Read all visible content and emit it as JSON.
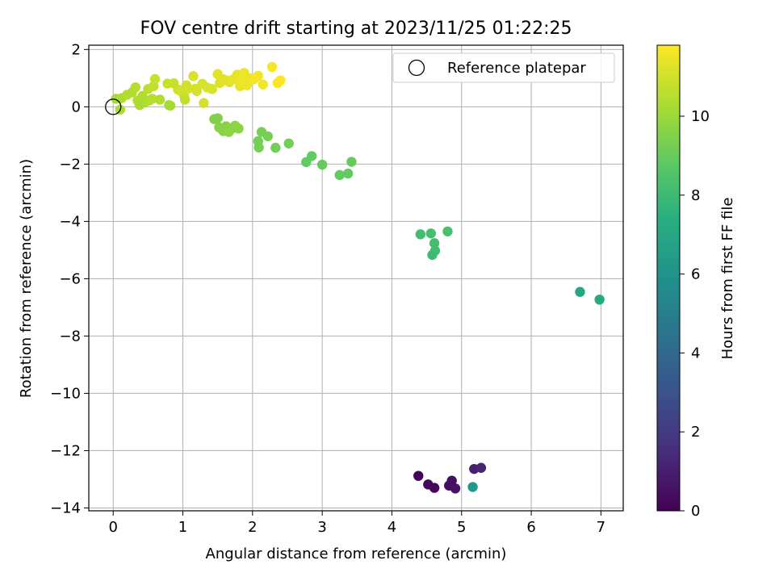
{
  "chart_data": {
    "type": "scatter",
    "title": "FOV centre drift starting at 2023/11/25 01:22:25",
    "xlabel": "Angular distance from reference (arcmin)",
    "ylabel": "Rotation from reference (arcmin)",
    "xlim": [
      -0.35,
      7.32
    ],
    "ylim": [
      -14.1,
      2.15
    ],
    "xticks": [
      0,
      1,
      2,
      3,
      4,
      5,
      6,
      7
    ],
    "yticks": [
      2,
      0,
      -2,
      -4,
      -6,
      -8,
      -10,
      -12,
      -14
    ],
    "grid": true,
    "legend": {
      "label": "Reference platepar",
      "position": "top-right",
      "marker": "open-circle"
    },
    "reference_point": {
      "x": 0,
      "y": 0
    },
    "colorbar": {
      "label": "Hours from first FF file",
      "min": 0,
      "max": 11.8,
      "ticks": [
        0,
        2,
        4,
        6,
        8,
        10
      ],
      "colormap": "viridis"
    },
    "points": [
      {
        "x": 4.38,
        "y": -12.88,
        "t": 0.1
      },
      {
        "x": 4.52,
        "y": -13.18,
        "t": 0.2
      },
      {
        "x": 4.61,
        "y": -13.3,
        "t": 0.25
      },
      {
        "x": 4.82,
        "y": -13.22,
        "t": 0.4
      },
      {
        "x": 4.86,
        "y": -13.05,
        "t": 0.5
      },
      {
        "x": 4.91,
        "y": -13.32,
        "t": 0.6
      },
      {
        "x": 5.18,
        "y": -12.64,
        "t": 1.0
      },
      {
        "x": 5.28,
        "y": -12.6,
        "t": 1.2
      },
      {
        "x": 5.16,
        "y": -13.27,
        "t": 6.2
      },
      {
        "x": 6.7,
        "y": -6.46,
        "t": 7.0
      },
      {
        "x": 6.98,
        "y": -6.73,
        "t": 7.1
      },
      {
        "x": 4.41,
        "y": -4.45,
        "t": 8.1
      },
      {
        "x": 4.56,
        "y": -4.42,
        "t": 8.2
      },
      {
        "x": 4.8,
        "y": -4.35,
        "t": 8.3
      },
      {
        "x": 4.61,
        "y": -4.76,
        "t": 8.2
      },
      {
        "x": 4.62,
        "y": -5.02,
        "t": 8.1
      },
      {
        "x": 4.58,
        "y": -5.17,
        "t": 8.0
      },
      {
        "x": 2.77,
        "y": -1.93,
        "t": 8.9
      },
      {
        "x": 2.85,
        "y": -1.72,
        "t": 8.9
      },
      {
        "x": 3.0,
        "y": -2.02,
        "t": 9.0
      },
      {
        "x": 3.25,
        "y": -2.38,
        "t": 8.9
      },
      {
        "x": 3.37,
        "y": -2.33,
        "t": 8.9
      },
      {
        "x": 3.42,
        "y": -1.92,
        "t": 9.0
      },
      {
        "x": 2.33,
        "y": -1.43,
        "t": 9.2
      },
      {
        "x": 2.52,
        "y": -1.28,
        "t": 9.2
      },
      {
        "x": 2.08,
        "y": -1.2,
        "t": 9.2
      },
      {
        "x": 2.09,
        "y": -1.42,
        "t": 9.3
      },
      {
        "x": 2.13,
        "y": -0.88,
        "t": 9.3
      },
      {
        "x": 2.22,
        "y": -1.03,
        "t": 9.3
      },
      {
        "x": 1.45,
        "y": -0.43,
        "t": 9.5
      },
      {
        "x": 1.5,
        "y": -0.4,
        "t": 9.5
      },
      {
        "x": 1.52,
        "y": -0.72,
        "t": 9.6
      },
      {
        "x": 1.58,
        "y": -0.85,
        "t": 9.6
      },
      {
        "x": 1.62,
        "y": -0.68,
        "t": 9.6
      },
      {
        "x": 1.66,
        "y": -0.88,
        "t": 9.7
      },
      {
        "x": 1.7,
        "y": -0.77,
        "t": 9.7
      },
      {
        "x": 1.75,
        "y": -0.66,
        "t": 9.7
      },
      {
        "x": 1.8,
        "y": -0.76,
        "t": 9.7
      },
      {
        "x": 0.04,
        "y": 0.28,
        "t": 10.2
      },
      {
        "x": 0.1,
        "y": -0.1,
        "t": 10.3
      },
      {
        "x": 0.12,
        "y": 0.3,
        "t": 10.3
      },
      {
        "x": 0.2,
        "y": 0.42,
        "t": 10.4
      },
      {
        "x": 0.27,
        "y": 0.5,
        "t": 10.4
      },
      {
        "x": 0.32,
        "y": 0.68,
        "t": 10.5
      },
      {
        "x": 0.35,
        "y": 0.22,
        "t": 10.4
      },
      {
        "x": 0.38,
        "y": 0.06,
        "t": 10.3
      },
      {
        "x": 0.42,
        "y": 0.38,
        "t": 10.4
      },
      {
        "x": 0.45,
        "y": 0.15,
        "t": 10.3
      },
      {
        "x": 0.5,
        "y": 0.62,
        "t": 10.6
      },
      {
        "x": 0.52,
        "y": 0.22,
        "t": 10.4
      },
      {
        "x": 0.56,
        "y": 0.28,
        "t": 10.5
      },
      {
        "x": 0.58,
        "y": 0.72,
        "t": 10.7
      },
      {
        "x": 0.6,
        "y": 0.97,
        "t": 10.8
      },
      {
        "x": 0.67,
        "y": 0.25,
        "t": 10.4
      },
      {
        "x": 0.78,
        "y": 0.81,
        "t": 10.8
      },
      {
        "x": 0.8,
        "y": 0.06,
        "t": 10.3
      },
      {
        "x": 0.82,
        "y": 0.04,
        "t": 10.2
      },
      {
        "x": 0.87,
        "y": 0.82,
        "t": 10.8
      },
      {
        "x": 0.93,
        "y": 0.6,
        "t": 10.9
      },
      {
        "x": 0.98,
        "y": 0.53,
        "t": 11.0
      },
      {
        "x": 1.02,
        "y": 0.37,
        "t": 10.9
      },
      {
        "x": 1.03,
        "y": 0.25,
        "t": 10.7
      },
      {
        "x": 1.05,
        "y": 0.75,
        "t": 11.0
      },
      {
        "x": 1.08,
        "y": 0.64,
        "t": 11.0
      },
      {
        "x": 1.15,
        "y": 1.07,
        "t": 11.1
      },
      {
        "x": 1.18,
        "y": 0.63,
        "t": 11.0
      },
      {
        "x": 1.2,
        "y": 0.55,
        "t": 11.0
      },
      {
        "x": 1.28,
        "y": 0.8,
        "t": 11.1
      },
      {
        "x": 1.3,
        "y": 0.13,
        "t": 11.0
      },
      {
        "x": 1.35,
        "y": 0.67,
        "t": 11.1
      },
      {
        "x": 1.42,
        "y": 0.62,
        "t": 11.1
      },
      {
        "x": 1.5,
        "y": 1.14,
        "t": 11.3
      },
      {
        "x": 1.53,
        "y": 0.83,
        "t": 11.2
      },
      {
        "x": 1.58,
        "y": 0.96,
        "t": 11.3
      },
      {
        "x": 1.63,
        "y": 0.92,
        "t": 11.3
      },
      {
        "x": 1.67,
        "y": 0.86,
        "t": 11.3
      },
      {
        "x": 1.72,
        "y": 0.96,
        "t": 11.4
      },
      {
        "x": 1.78,
        "y": 1.12,
        "t": 11.4
      },
      {
        "x": 1.82,
        "y": 0.72,
        "t": 11.4
      },
      {
        "x": 1.85,
        "y": 0.88,
        "t": 11.5
      },
      {
        "x": 1.88,
        "y": 1.18,
        "t": 11.5
      },
      {
        "x": 1.92,
        "y": 0.75,
        "t": 11.5
      },
      {
        "x": 1.96,
        "y": 1.0,
        "t": 11.5
      },
      {
        "x": 2.02,
        "y": 0.96,
        "t": 11.6
      },
      {
        "x": 2.08,
        "y": 1.08,
        "t": 11.6
      },
      {
        "x": 2.15,
        "y": 0.78,
        "t": 11.6
      },
      {
        "x": 2.28,
        "y": 1.39,
        "t": 11.7
      },
      {
        "x": 2.36,
        "y": 0.83,
        "t": 11.7
      },
      {
        "x": 2.4,
        "y": 0.92,
        "t": 11.8
      }
    ]
  }
}
